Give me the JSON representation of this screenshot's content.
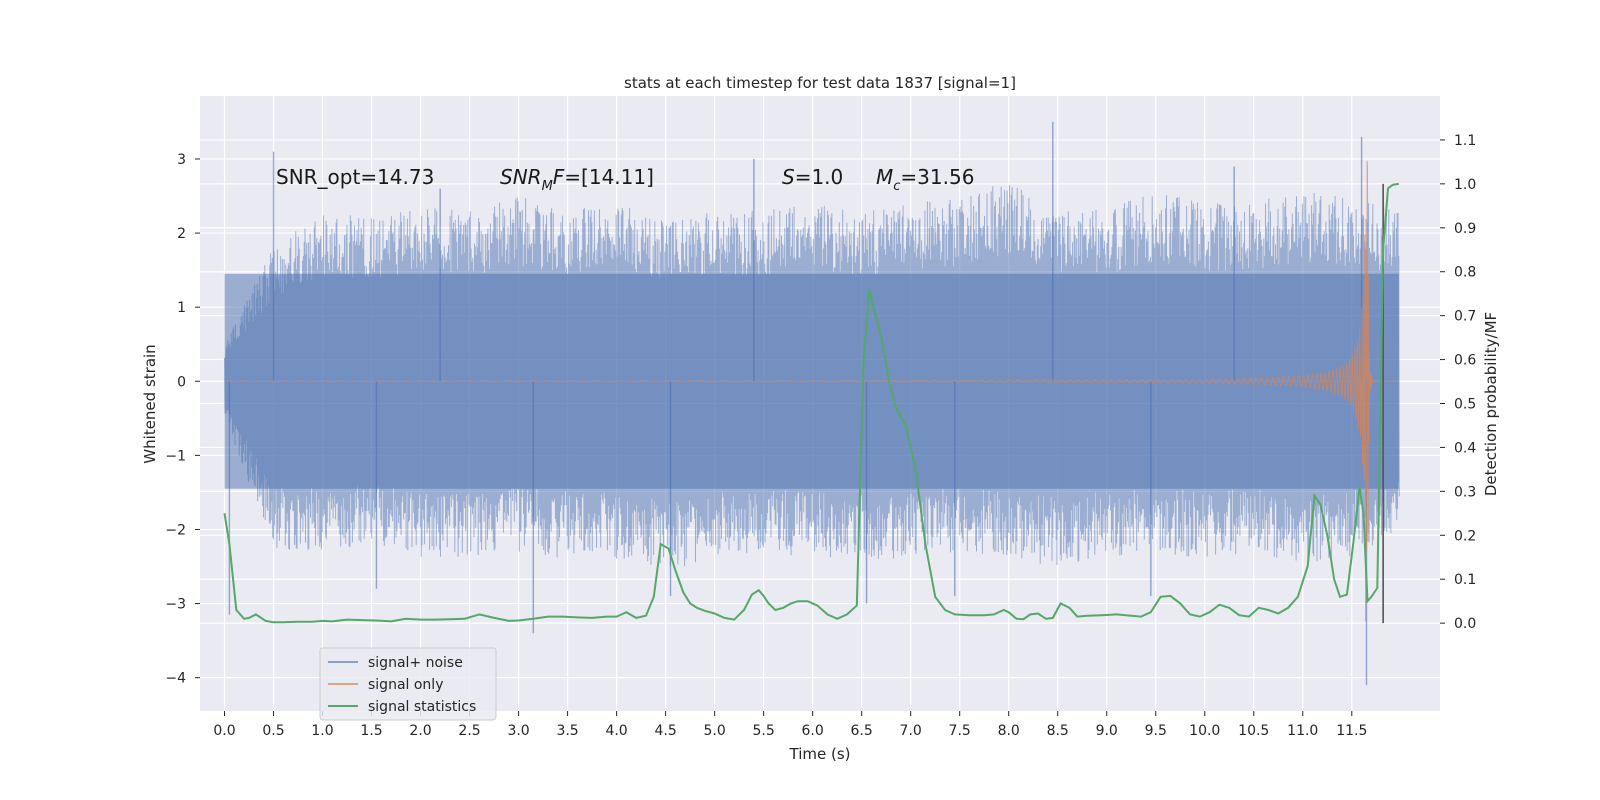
{
  "chart_data": {
    "type": "line",
    "title": "stats at each timestep for test data 1837 [signal=1]",
    "xlabel": "Time (s)",
    "ylabel": "Whitened strain",
    "y2label": "Detection probability/MF",
    "xlim": [
      -0.25,
      12.4
    ],
    "ylim": [
      -4.45,
      3.85
    ],
    "y2lim": [
      -0.2,
      1.2
    ],
    "x_ticks": [
      "0.0",
      "0.5",
      "1.0",
      "1.5",
      "2.0",
      "2.5",
      "3.0",
      "3.5",
      "4.0",
      "4.5",
      "5.0",
      "5.5",
      "6.0",
      "6.5",
      "7.0",
      "7.5",
      "8.0",
      "8.5",
      "9.0",
      "9.5",
      "10.0",
      "10.5",
      "11.0",
      "11.5"
    ],
    "y_ticks": [
      "3",
      "2",
      "1",
      "0",
      "−1",
      "−2",
      "−3",
      "−4"
    ],
    "y2_ticks": [
      "1.1",
      "1.0",
      "0.9",
      "0.8",
      "0.7",
      "0.6",
      "0.5",
      "0.4",
      "0.3",
      "0.2",
      "0.1",
      "0.0"
    ],
    "grid": true,
    "legend_position": "lower-left",
    "colors": {
      "background": "#eaeaf2",
      "grid": "#ffffff",
      "noise": "#4c72b0",
      "signal": "#dd8452",
      "stats": "#55a868",
      "marker": "#555555"
    },
    "annotations": [
      {
        "parts": [
          {
            "t": "SNR_opt=14.73",
            "i": false
          }
        ]
      },
      {
        "parts": [
          {
            "t": "SNR",
            "i": true
          },
          {
            "t": "M",
            "i": true,
            "sub": true
          },
          {
            "t": "F",
            "i": true
          },
          {
            "t": "=[14.11]",
            "i": false
          }
        ]
      },
      {
        "parts": [
          {
            "t": "S",
            "i": true
          },
          {
            "t": "=1.0",
            "i": false
          }
        ]
      },
      {
        "parts": [
          {
            "t": "M",
            "i": true
          },
          {
            "t": "c",
            "i": true,
            "sub": true
          },
          {
            "t": "=31.56",
            "i": false
          }
        ]
      }
    ],
    "series": [
      {
        "name": "signal+ noise",
        "axis": "left",
        "x_range": [
          0.0,
          11.98
        ],
        "envelope_hi": [
          0.5,
          1.8,
          2.3,
          2.2,
          2.4,
          2.3,
          2.5,
          2.3,
          2.4,
          2.2,
          2.3,
          2.3,
          2.4,
          2.3,
          2.4,
          2.5,
          2.7,
          2.4,
          2.3,
          2.6,
          2.4,
          2.4,
          2.6,
          2.5,
          2.3
        ],
        "envelope_lo": [
          -0.5,
          -2.3,
          -2.3,
          -2.2,
          -2.4,
          -2.4,
          -2.3,
          -2.4,
          -2.4,
          -2.6,
          -2.4,
          -2.3,
          -2.4,
          -2.4,
          -2.4,
          -2.3,
          -2.4,
          -2.5,
          -2.4,
          -2.3,
          -2.4,
          -2.3,
          -2.5,
          -2.4,
          -2.0
        ],
        "spikes": [
          [
            0.05,
            -3.15
          ],
          [
            0.5,
            3.1
          ],
          [
            3.15,
            -3.4
          ],
          [
            8.45,
            3.5
          ],
          [
            11.65,
            -4.1
          ],
          [
            11.6,
            3.3
          ],
          [
            7.45,
            -2.9
          ],
          [
            1.55,
            -2.8
          ],
          [
            4.55,
            -2.9
          ],
          [
            5.4,
            3.0
          ],
          [
            6.55,
            -3.0
          ],
          [
            10.3,
            2.9
          ],
          [
            2.2,
            2.6
          ],
          [
            9.45,
            -2.9
          ]
        ]
      },
      {
        "name": "signal only",
        "axis": "left",
        "t_merger": 11.66,
        "x_range": [
          0.0,
          11.98
        ],
        "peak_amplitude": 3.25
      },
      {
        "name": "signal statistics",
        "axis": "right",
        "x": [
          0.0,
          0.05,
          0.12,
          0.2,
          0.25,
          0.32,
          0.42,
          0.5,
          0.6,
          0.75,
          0.9,
          1.0,
          1.1,
          1.25,
          1.4,
          1.55,
          1.7,
          1.85,
          2.0,
          2.15,
          2.3,
          2.45,
          2.6,
          2.75,
          2.9,
          3.0,
          3.15,
          3.3,
          3.45,
          3.6,
          3.75,
          3.9,
          4.0,
          4.1,
          4.2,
          4.3,
          4.38,
          4.45,
          4.53,
          4.6,
          4.68,
          4.75,
          4.82,
          4.9,
          5.0,
          5.1,
          5.2,
          5.3,
          5.38,
          5.45,
          5.5,
          5.55,
          5.62,
          5.7,
          5.78,
          5.85,
          5.95,
          6.05,
          6.15,
          6.25,
          6.35,
          6.45,
          6.52,
          6.58,
          6.62,
          6.7,
          6.78,
          6.85,
          6.95,
          7.05,
          7.15,
          7.25,
          7.35,
          7.45,
          7.6,
          7.75,
          7.85,
          7.95,
          8.0,
          8.08,
          8.15,
          8.22,
          8.3,
          8.38,
          8.45,
          8.53,
          8.62,
          8.7,
          8.8,
          8.95,
          9.1,
          9.25,
          9.35,
          9.45,
          9.55,
          9.65,
          9.75,
          9.85,
          9.95,
          10.05,
          10.15,
          10.25,
          10.35,
          10.45,
          10.55,
          10.65,
          10.75,
          10.85,
          10.95,
          11.05,
          11.12,
          11.18,
          11.25,
          11.32,
          11.38,
          11.45,
          11.52,
          11.58,
          11.62,
          11.66,
          11.7,
          11.76,
          11.82,
          11.87,
          11.92,
          11.98
        ],
        "values": [
          0.25,
          0.18,
          0.03,
          0.01,
          0.012,
          0.02,
          0.005,
          0.002,
          0.002,
          0.003,
          0.003,
          0.005,
          0.004,
          0.008,
          0.007,
          0.006,
          0.004,
          0.01,
          0.008,
          0.008,
          0.009,
          0.01,
          0.02,
          0.012,
          0.005,
          0.006,
          0.01,
          0.015,
          0.015,
          0.013,
          0.012,
          0.015,
          0.015,
          0.025,
          0.012,
          0.017,
          0.06,
          0.18,
          0.17,
          0.12,
          0.07,
          0.045,
          0.035,
          0.028,
          0.022,
          0.012,
          0.008,
          0.03,
          0.065,
          0.075,
          0.062,
          0.045,
          0.03,
          0.035,
          0.045,
          0.05,
          0.05,
          0.04,
          0.02,
          0.01,
          0.02,
          0.04,
          0.6,
          0.76,
          0.72,
          0.65,
          0.55,
          0.49,
          0.45,
          0.35,
          0.18,
          0.06,
          0.03,
          0.02,
          0.018,
          0.018,
          0.02,
          0.03,
          0.025,
          0.01,
          0.009,
          0.02,
          0.022,
          0.01,
          0.012,
          0.045,
          0.035,
          0.015,
          0.017,
          0.018,
          0.02,
          0.017,
          0.015,
          0.025,
          0.06,
          0.062,
          0.045,
          0.02,
          0.015,
          0.025,
          0.042,
          0.035,
          0.018,
          0.015,
          0.035,
          0.03,
          0.022,
          0.035,
          0.06,
          0.13,
          0.29,
          0.27,
          0.2,
          0.1,
          0.06,
          0.065,
          0.19,
          0.31,
          0.25,
          0.05,
          0.06,
          0.08,
          0.85,
          0.99,
          0.998,
          1.0
        ]
      },
      {
        "name": "",
        "axis": "right",
        "vline_x": 11.82,
        "y_range": [
          0.0,
          1.0
        ]
      }
    ]
  }
}
